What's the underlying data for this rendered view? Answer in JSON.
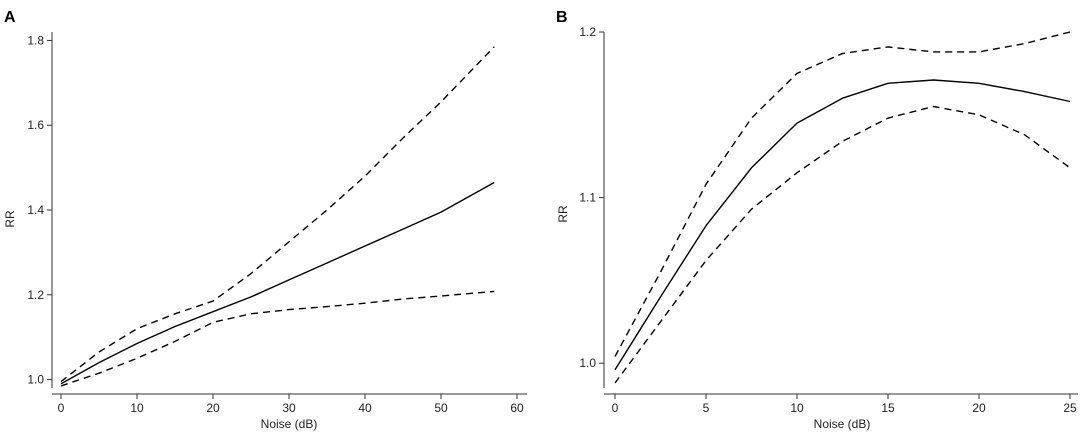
{
  "chart_data": [
    {
      "panel_label": "A",
      "type": "line",
      "title": "",
      "xlabel": "Noise (dB)",
      "ylabel": "RR",
      "xlim": [
        0,
        60
      ],
      "ylim": [
        0.98,
        1.82
      ],
      "xticks": [
        0,
        10,
        20,
        30,
        40,
        50,
        60
      ],
      "yticks": [
        1.0,
        1.2,
        1.4,
        1.6,
        1.8
      ],
      "xtick_labels": [
        "0",
        "10",
        "20",
        "30",
        "40",
        "50",
        "60"
      ],
      "ytick_labels": [
        "1.0",
        "1.2",
        "1.4",
        "1.6",
        "1.8"
      ],
      "grid": false,
      "legend": "none",
      "series": [
        {
          "style": "solid",
          "x": [
            0,
            5,
            10,
            15,
            20,
            25,
            30,
            35,
            40,
            45,
            50,
            57
          ],
          "y": [
            0.99,
            1.04,
            1.085,
            1.125,
            1.16,
            1.195,
            1.235,
            1.275,
            1.315,
            1.355,
            1.395,
            1.465
          ]
        },
        {
          "style": "dashed",
          "x": [
            0,
            5,
            10,
            15,
            20,
            25,
            30,
            35,
            40,
            45,
            50,
            57
          ],
          "y": [
            0.995,
            1.065,
            1.12,
            1.155,
            1.185,
            1.25,
            1.325,
            1.4,
            1.48,
            1.57,
            1.655,
            1.785
          ]
        },
        {
          "style": "dashed",
          "x": [
            0,
            5,
            10,
            15,
            20,
            25,
            30,
            35,
            40,
            45,
            50,
            57
          ],
          "y": [
            0.985,
            1.015,
            1.05,
            1.09,
            1.135,
            1.155,
            1.165,
            1.172,
            1.18,
            1.19,
            1.197,
            1.208
          ]
        }
      ]
    },
    {
      "panel_label": "B",
      "type": "line",
      "title": "",
      "xlabel": "Noise (dB)",
      "ylabel": "RR",
      "xlim": [
        0,
        25
      ],
      "ylim": [
        0.985,
        1.2
      ],
      "xticks": [
        0,
        5,
        10,
        15,
        20,
        25
      ],
      "yticks": [
        1.0,
        1.1,
        1.2
      ],
      "xtick_labels": [
        "0",
        "5",
        "10",
        "15",
        "20",
        "25"
      ],
      "ytick_labels": [
        "1.0",
        "1.1",
        "1.2"
      ],
      "grid": false,
      "legend": "none",
      "series": [
        {
          "style": "solid",
          "x": [
            0,
            2.5,
            5,
            7.5,
            10,
            12.5,
            15,
            17.5,
            20,
            22.5,
            25
          ],
          "y": [
            0.996,
            1.04,
            1.083,
            1.118,
            1.145,
            1.16,
            1.169,
            1.171,
            1.169,
            1.164,
            1.158
          ]
        },
        {
          "style": "dashed",
          "x": [
            0,
            2.5,
            5,
            7.5,
            10,
            12.5,
            15,
            17.5,
            20,
            22.5,
            25
          ],
          "y": [
            1.004,
            1.055,
            1.108,
            1.148,
            1.175,
            1.187,
            1.191,
            1.188,
            1.188,
            1.193,
            1.2
          ]
        },
        {
          "style": "dashed",
          "x": [
            0,
            2.5,
            5,
            7.5,
            10,
            12.5,
            15,
            17.5,
            20,
            22.5,
            25
          ],
          "y": [
            0.988,
            1.025,
            1.062,
            1.093,
            1.115,
            1.134,
            1.148,
            1.155,
            1.15,
            1.138,
            1.118
          ]
        }
      ]
    }
  ]
}
